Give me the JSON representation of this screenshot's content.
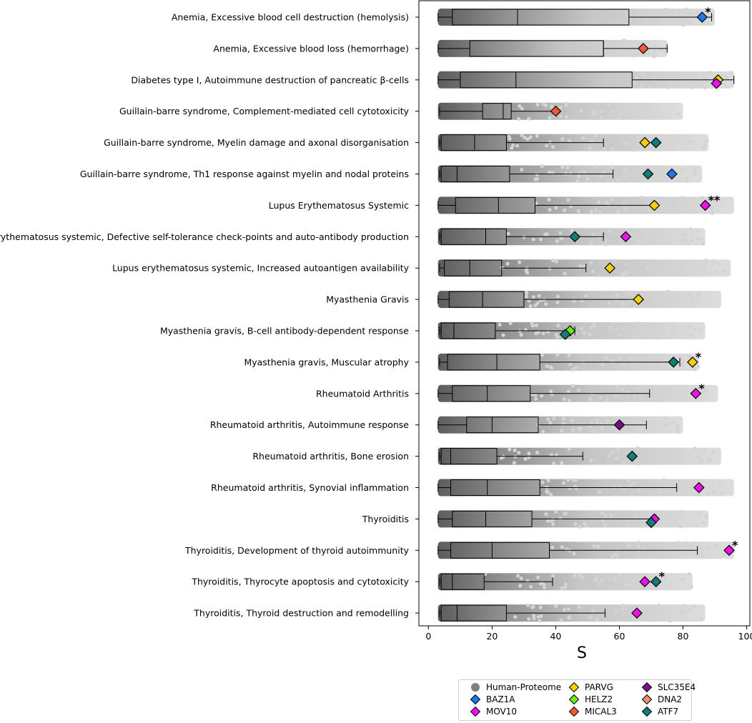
{
  "chart_data": {
    "type": "box-strip",
    "xlabel": "S",
    "xlim": [
      -3,
      101
    ],
    "xticks": [
      0,
      20,
      40,
      60,
      80,
      100
    ],
    "categories": [
      {
        "label": "Anemia, Excessive blood cell destruction (hemolysis)",
        "box": [
          3,
          7.5,
          28,
          63,
          89
        ],
        "max_strip": 90,
        "markers": [
          {
            "protein": "BAZ1A",
            "value": 86
          }
        ],
        "annotation": "*"
      },
      {
        "label": "Anemia, Excessive blood loss (hemorrhage)",
        "box": [
          3,
          13,
          55,
          55,
          75
        ],
        "max_strip": 75,
        "markers": [
          {
            "protein": "MICAL3",
            "value": 67.5
          }
        ],
        "annotation": ""
      },
      {
        "label": "Diabetes type I, Autoimmune destruction of pancreatic β-cells",
        "box": [
          3,
          10,
          27.5,
          64,
          96
        ],
        "max_strip": 96,
        "markers": [
          {
            "protein": "PARVG",
            "value": 91
          },
          {
            "protein": "MOV10",
            "value": 90.5
          }
        ],
        "annotation": ""
      },
      {
        "label": "Guillain-barre syndrome, Complement-mediated cell cytotoxicity",
        "box": [
          3.5,
          17,
          23.5,
          26,
          40
        ],
        "max_strip": 80,
        "markers": [
          {
            "protein": "MICAL3",
            "value": 40
          }
        ],
        "annotation": ""
      },
      {
        "label": "Guillain-barre syndrome, Myelin damage and axonal disorganisation",
        "box": [
          3.5,
          4,
          14.5,
          24.5,
          55
        ],
        "max_strip": 88,
        "markers": [
          {
            "protein": "PARVG",
            "value": 68
          },
          {
            "protein": "ATF7",
            "value": 71.5
          }
        ],
        "annotation": ""
      },
      {
        "label": "Guillain-barre syndrome, Th1 response against myelin and nodal proteins",
        "box": [
          3.5,
          4,
          9,
          25.5,
          58
        ],
        "max_strip": 86,
        "markers": [
          {
            "protein": "ATF7",
            "value": 69
          },
          {
            "protein": "BAZ1A",
            "value": 76.5
          }
        ],
        "annotation": ""
      },
      {
        "label": "Lupus Erythematosus Systemic",
        "box": [
          3,
          8.5,
          22,
          33.5,
          71
        ],
        "max_strip": 96,
        "markers": [
          {
            "protein": "PARVG",
            "value": 71
          },
          {
            "protein": "MOV10",
            "value": 87
          }
        ],
        "annotation": "**"
      },
      {
        "label": "Lupus erythematosus systemic, Defective self-tolerance check-points and auto-antibody production",
        "box": [
          3.5,
          4,
          18,
          24.5,
          55
        ],
        "max_strip": 87,
        "markers": [
          {
            "protein": "ATF7",
            "value": 46
          },
          {
            "protein": "MOV10",
            "value": 62
          }
        ],
        "annotation": ""
      },
      {
        "label": "Lupus erythematosus systemic, Increased autoantigen availability",
        "box": [
          3.5,
          5,
          13,
          23,
          49.5
        ],
        "max_strip": 95,
        "markers": [
          {
            "protein": "PARVG",
            "value": 57
          }
        ],
        "annotation": ""
      },
      {
        "label": "Myasthenia Gravis",
        "box": [
          3,
          6.5,
          17,
          30,
          66
        ],
        "max_strip": 92,
        "markers": [
          {
            "protein": "PARVG",
            "value": 66
          }
        ],
        "annotation": ""
      },
      {
        "label": "Myasthenia gravis, B-cell antibody-dependent response",
        "box": [
          3.5,
          4,
          8,
          21,
          46
        ],
        "max_strip": 87,
        "markers": [
          {
            "protein": "HELZ2",
            "value": 44.5
          },
          {
            "protein": "ATF7",
            "value": 43
          }
        ],
        "annotation": ""
      },
      {
        "label": "Myasthenia gravis, Muscular atrophy",
        "box": [
          3.5,
          6,
          21.5,
          35,
          79
        ],
        "max_strip": 85,
        "markers": [
          {
            "protein": "ATF7",
            "value": 77
          },
          {
            "protein": "PARVG",
            "value": 83
          }
        ],
        "annotation": "*"
      },
      {
        "label": "Rheumatoid Arthritis",
        "box": [
          3,
          7.5,
          18.5,
          32,
          69.5
        ],
        "max_strip": 91,
        "markers": [
          {
            "protein": "MOV10",
            "value": 84
          }
        ],
        "annotation": "*"
      },
      {
        "label": "Rheumatoid arthritis, Autoimmune response",
        "box": [
          3,
          12,
          20,
          34.5,
          68.5
        ],
        "max_strip": 80,
        "markers": [
          {
            "protein": "SLC35E4",
            "value": 60
          }
        ],
        "annotation": ""
      },
      {
        "label": "Rheumatoid arthritis, Bone erosion",
        "box": [
          3.5,
          4,
          7,
          21.5,
          48.5
        ],
        "max_strip": 92,
        "markers": [
          {
            "protein": "ATF7",
            "value": 64
          }
        ],
        "annotation": ""
      },
      {
        "label": "Rheumatoid arthritis, Synovial inflammation",
        "box": [
          3,
          7,
          18.5,
          35,
          78
        ],
        "max_strip": 96,
        "markers": [
          {
            "protein": "MOV10",
            "value": 85
          }
        ],
        "annotation": ""
      },
      {
        "label": "Thyroiditis",
        "box": [
          3,
          7.5,
          18,
          32.5,
          71.5
        ],
        "max_strip": 88,
        "markers": [
          {
            "protein": "MOV10",
            "value": 71
          },
          {
            "protein": "ATF7",
            "value": 70
          }
        ],
        "annotation": ""
      },
      {
        "label": "Thyroiditis, Development of thyroid autoimmunity",
        "box": [
          3,
          7,
          20,
          38,
          84.5
        ],
        "max_strip": 96,
        "markers": [
          {
            "protein": "MOV10",
            "value": 94.5
          }
        ],
        "annotation": "*"
      },
      {
        "label": "Thyroiditis, Thyrocyte apoptosis and cytotoxicity",
        "box": [
          3.5,
          4,
          7.5,
          17.5,
          39
        ],
        "max_strip": 83,
        "markers": [
          {
            "protein": "MOV10",
            "value": 68
          },
          {
            "protein": "ATF7",
            "value": 71.5
          }
        ],
        "annotation": "*"
      },
      {
        "label": "Thyroiditis, Thyroid destruction and remodelling",
        "box": [
          3.5,
          4,
          9,
          24.5,
          55.5
        ],
        "max_strip": 87,
        "markers": [
          {
            "protein": "MOV10",
            "value": 65.5
          }
        ],
        "annotation": ""
      }
    ],
    "legend": [
      {
        "name": "Human-Proteome",
        "shape": "circle",
        "color": "#7f7f7f"
      },
      {
        "name": "BAZ1A",
        "shape": "diamond",
        "color": "#1f78e6"
      },
      {
        "name": "MOV10",
        "shape": "diamond",
        "color": "#ee11ee"
      },
      {
        "name": "PARVG",
        "shape": "diamond",
        "color": "#f5cf0f"
      },
      {
        "name": "HELZ2",
        "shape": "diamond",
        "color": "#66ee11"
      },
      {
        "name": "MICAL3",
        "shape": "diamond",
        "color": "#f05a36"
      },
      {
        "name": "SLC35E4",
        "shape": "diamond",
        "color": "#7a0e88"
      },
      {
        "name": "DNA2",
        "shape": "diamond",
        "color": "#f08a74"
      },
      {
        "name": "ATF7",
        "shape": "diamond",
        "color": "#137d7a"
      }
    ],
    "legend_position": "bottom-right"
  }
}
